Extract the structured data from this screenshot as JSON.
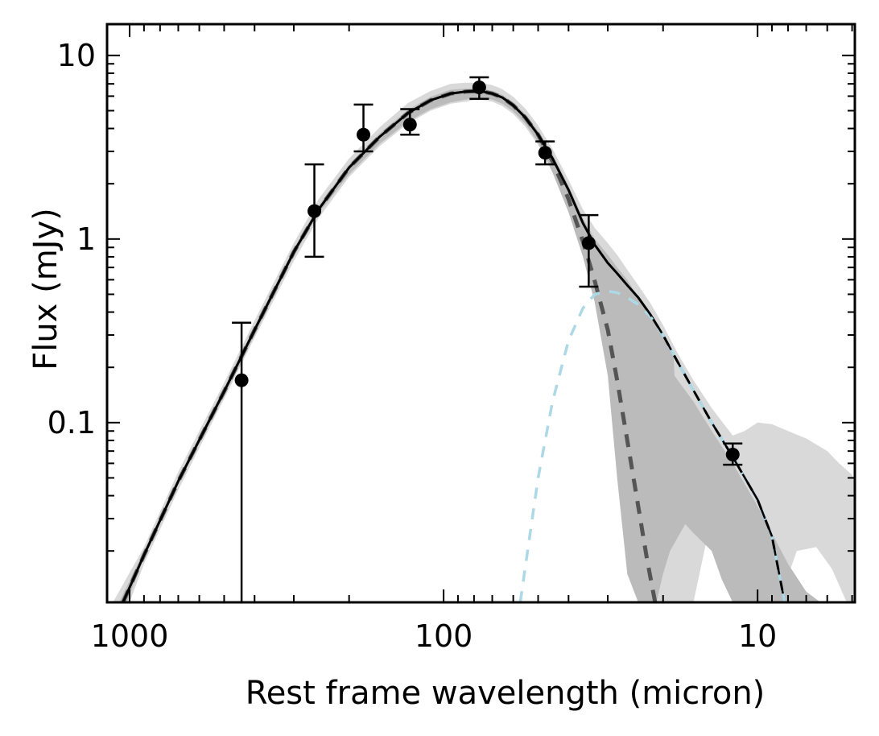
{
  "chart_data": {
    "type": "scatter",
    "title": "",
    "xlabel": "Rest frame wavelength (micron)",
    "ylabel": "Flux (mJy)",
    "x_scale": "log",
    "x_reversed": true,
    "y_scale": "log",
    "xlim": [
      1180,
      4.9
    ],
    "ylim": [
      0.0105,
      14.8
    ],
    "x_ticks": [
      {
        "value": 1000,
        "label": "1000"
      },
      {
        "value": 100,
        "label": "100"
      },
      {
        "value": 10,
        "label": "10"
      }
    ],
    "y_ticks": [
      {
        "value": 10,
        "label": "10"
      },
      {
        "value": 1,
        "label": "1"
      },
      {
        "value": 0.1,
        "label": "0.1"
      }
    ],
    "grid": false,
    "legend": "none",
    "colors": {
      "total_model": "#000000",
      "cold_dust": "#555555",
      "warm_dust": "#add8e6",
      "outer_band": "#d9d9d9",
      "inner_band": "#bbbbbb",
      "points": "#000000"
    },
    "points": [
      {
        "x": 440,
        "y": 0.17,
        "ylo": 0.0105,
        "yhi": 0.35
      },
      {
        "x": 258,
        "y": 1.42,
        "ylo": 0.8,
        "yhi": 2.55
      },
      {
        "x": 180,
        "y": 3.7,
        "ylo": 3.0,
        "yhi": 5.4
      },
      {
        "x": 128,
        "y": 4.2,
        "ylo": 3.7,
        "yhi": 5.1
      },
      {
        "x": 77,
        "y": 6.7,
        "ylo": 5.8,
        "yhi": 7.6
      },
      {
        "x": 47.5,
        "y": 2.95,
        "ylo": 2.55,
        "yhi": 3.4
      },
      {
        "x": 34.5,
        "y": 0.95,
        "ylo": 0.55,
        "yhi": 1.35
      },
      {
        "x": 12,
        "y": 0.067,
        "ylo": 0.059,
        "yhi": 0.077
      }
    ],
    "series": [
      {
        "style": "solid",
        "x": [
          1050,
          900,
          700,
          500,
          400,
          300,
          250,
          200,
          160,
          130,
          110,
          95,
          85,
          80,
          75,
          70,
          65,
          60,
          55,
          50,
          45,
          40,
          36,
          33,
          30,
          28,
          26,
          24,
          22,
          20,
          18,
          16,
          14,
          12,
          10,
          9,
          8.2
        ],
        "y": [
          0.0105,
          0.019,
          0.048,
          0.148,
          0.32,
          0.85,
          1.45,
          2.45,
          3.6,
          4.85,
          5.7,
          6.2,
          6.35,
          6.38,
          6.35,
          6.2,
          5.9,
          5.35,
          4.6,
          3.7,
          2.75,
          1.85,
          1.22,
          0.93,
          0.74,
          0.65,
          0.56,
          0.48,
          0.39,
          0.3,
          0.215,
          0.15,
          0.1,
          0.065,
          0.038,
          0.024,
          0.0105
        ]
      },
      {
        "style": "dashed",
        "x": [
          1050,
          900,
          700,
          500,
          400,
          300,
          250,
          200,
          160,
          130,
          110,
          95,
          85,
          80,
          75,
          70,
          65,
          60,
          55,
          50,
          45,
          40,
          36,
          33,
          30,
          28,
          26,
          24,
          22.5,
          21.2
        ],
        "y": [
          0.0105,
          0.019,
          0.048,
          0.148,
          0.32,
          0.85,
          1.45,
          2.45,
          3.6,
          4.85,
          5.7,
          6.2,
          6.35,
          6.38,
          6.35,
          6.2,
          5.9,
          5.35,
          4.6,
          3.7,
          2.65,
          1.65,
          0.97,
          0.59,
          0.32,
          0.17,
          0.08,
          0.035,
          0.018,
          0.0105
        ]
      },
      {
        "style": "dashed",
        "x": [
          57,
          50,
          45,
          40,
          36,
          33,
          30,
          28,
          26,
          24,
          22,
          20,
          18,
          16,
          14,
          12,
          10,
          9,
          8.2
        ],
        "y": [
          0.0105,
          0.05,
          0.13,
          0.28,
          0.42,
          0.5,
          0.52,
          0.51,
          0.48,
          0.44,
          0.38,
          0.3,
          0.215,
          0.15,
          0.1,
          0.065,
          0.038,
          0.024,
          0.0105
        ]
      }
    ],
    "bands": [
      {
        "layer": "outer",
        "x": [
          1130,
          900,
          700,
          500,
          400,
          300,
          250,
          200,
          160,
          130,
          110,
          95,
          85,
          80,
          75,
          70,
          65,
          60,
          55,
          50,
          45,
          40,
          36,
          33,
          30,
          28,
          26,
          24,
          22,
          20,
          18,
          16,
          14,
          12,
          11,
          10,
          9,
          8,
          7,
          6,
          5.5,
          5,
          4.9,
          4.9,
          5.2,
          5.8,
          6.5,
          7.5,
          8.2,
          9,
          10,
          11,
          12,
          13,
          14,
          16,
          17.5,
          20,
          22,
          24,
          26,
          28,
          30,
          33,
          36,
          40,
          45,
          50,
          55,
          60,
          65,
          70,
          75,
          80,
          85,
          95,
          110,
          130,
          160,
          200,
          250,
          300,
          400,
          500,
          700,
          900,
          1000
        ],
        "y": [
          0.0105,
          0.021,
          0.054,
          0.165,
          0.36,
          0.95,
          1.65,
          2.75,
          4.05,
          5.5,
          6.4,
          7.0,
          7.1,
          7.1,
          7.05,
          6.9,
          6.55,
          5.95,
          5.15,
          4.15,
          3.1,
          2.1,
          1.45,
          1.15,
          0.95,
          0.82,
          0.68,
          0.56,
          0.45,
          0.34,
          0.24,
          0.17,
          0.12,
          0.085,
          0.09,
          0.1,
          0.098,
          0.09,
          0.082,
          0.07,
          0.06,
          0.052,
          0.047,
          0.0105,
          0.0105,
          0.016,
          0.021,
          0.02,
          0.013,
          0.022,
          0.033,
          0.045,
          0.052,
          0.045,
          0.031,
          0.0105,
          0.0105,
          0.0105,
          0.0105,
          0.012,
          0.03,
          0.07,
          0.22,
          0.55,
          0.95,
          1.5,
          2.35,
          3.25,
          4.1,
          4.8,
          5.3,
          5.6,
          5.7,
          5.7,
          5.6,
          5.45,
          5.0,
          4.25,
          3.2,
          2.18,
          1.3,
          0.76,
          0.29,
          0.135,
          0.043,
          0.017,
          0.0105
        ]
      },
      {
        "layer": "inner",
        "x": [
          1080,
          900,
          700,
          500,
          400,
          300,
          250,
          200,
          160,
          130,
          110,
          95,
          85,
          80,
          75,
          70,
          65,
          60,
          55,
          50,
          45,
          40,
          36,
          33,
          30,
          28,
          26,
          24,
          22,
          20,
          18.5,
          18.4,
          16,
          14,
          12,
          10,
          9,
          8,
          7,
          6.3,
          6.3,
          7,
          8,
          9,
          10,
          11,
          12,
          13,
          14,
          16,
          17,
          19,
          20,
          21,
          22,
          23,
          24,
          26,
          28,
          30,
          33,
          36,
          40,
          45,
          50,
          55,
          60,
          65,
          70,
          75,
          80,
          85,
          95,
          110,
          130,
          160,
          200,
          250,
          300,
          400,
          500,
          700,
          900,
          1020
        ],
        "y": [
          0.0105,
          0.02,
          0.05,
          0.155,
          0.335,
          0.89,
          1.52,
          2.55,
          3.75,
          5.05,
          5.95,
          6.5,
          6.6,
          6.62,
          6.58,
          6.42,
          6.1,
          5.55,
          4.8,
          3.9,
          2.9,
          1.95,
          1.3,
          1.0,
          0.82,
          0.7,
          0.6,
          0.48,
          0.38,
          0.29,
          0.23,
          0.18,
          0.13,
          0.09,
          0.06,
          0.035,
          0.025,
          0.017,
          0.012,
          0.0105,
          0.0105,
          0.0105,
          0.0105,
          0.0105,
          0.0105,
          0.0105,
          0.0105,
          0.014,
          0.02,
          0.025,
          0.028,
          0.02,
          0.015,
          0.0105,
          0.0105,
          0.0105,
          0.0105,
          0.015,
          0.05,
          0.18,
          0.45,
          0.8,
          1.4,
          2.3,
          3.35,
          4.25,
          4.95,
          5.45,
          5.75,
          5.85,
          5.85,
          5.75,
          5.55,
          5.1,
          4.35,
          3.3,
          2.25,
          1.38,
          0.81,
          0.3,
          0.14,
          0.046,
          0.0185,
          0.0105
        ]
      }
    ]
  }
}
